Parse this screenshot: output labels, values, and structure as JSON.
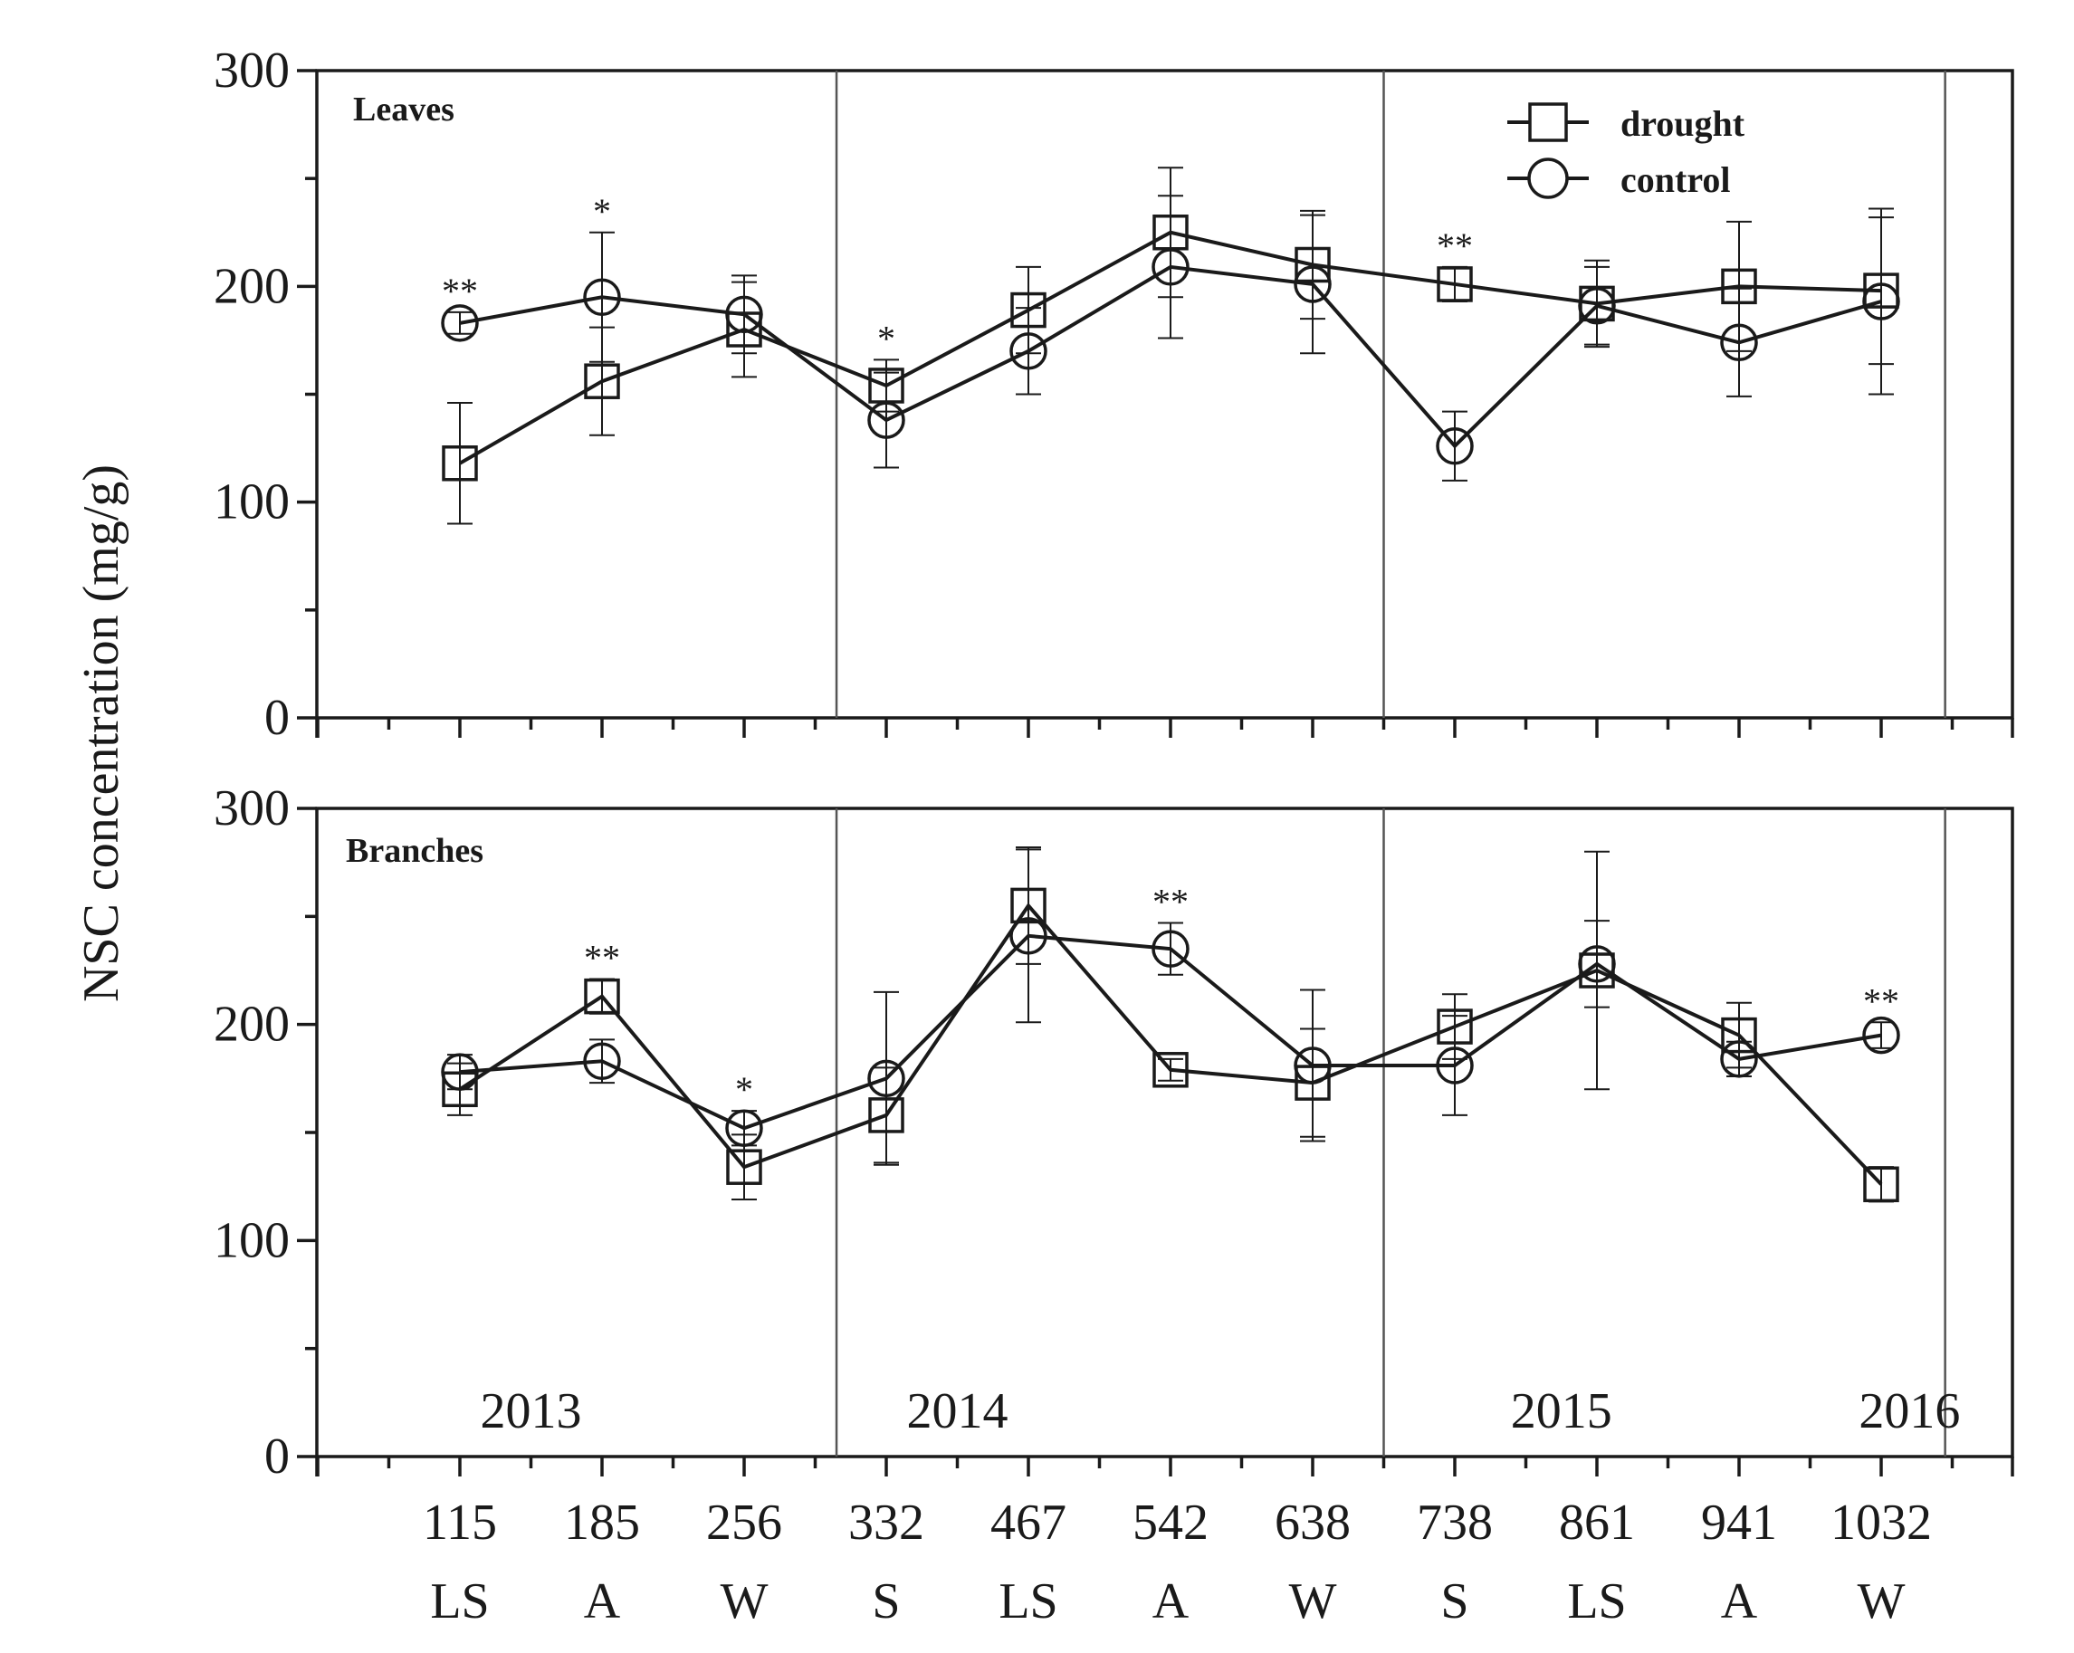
{
  "y_axis_label": "NSC concentration (mg/g)",
  "x_tick_labels": {
    "days": [
      "115",
      "185",
      "256",
      "332",
      "467",
      "542",
      "638",
      "738",
      "861",
      "941",
      "1032"
    ],
    "seasons": [
      "LS",
      "A",
      "W",
      "S",
      "LS",
      "A",
      "W",
      "S",
      "LS",
      "A",
      "W"
    ]
  },
  "year_separators_day_index": [
    2.65,
    6.5,
    10.45
  ],
  "year_labels": [
    {
      "label": "2013",
      "center_index": 0.5
    },
    {
      "label": "2014",
      "center_index": 3.5
    },
    {
      "label": "2015",
      "center_index": 7.75
    },
    {
      "label": "2016",
      "center_index": 10.2
    }
  ],
  "legend": {
    "position": "top-right",
    "drought": "drought",
    "control": "control"
  },
  "colors": {
    "ink": "#1a1a1a",
    "background": "#ffffff",
    "separator": "#555555"
  },
  "chart_data": [
    {
      "type": "line",
      "title": "Leaves",
      "ylabel": "NSC concentration (mg/g)",
      "ylim": [
        0,
        300
      ],
      "yticks": [
        0,
        100,
        200,
        300
      ],
      "x": [
        115,
        185,
        256,
        332,
        467,
        542,
        638,
        738,
        861,
        941,
        1032
      ],
      "series": [
        {
          "name": "drought",
          "marker": "square",
          "values": [
            118,
            156,
            180,
            154,
            189,
            225,
            210,
            201,
            192,
            200,
            198
          ],
          "errors": [
            28,
            25,
            22,
            12,
            20,
            30,
            25,
            8,
            20,
            30,
            34
          ]
        },
        {
          "name": "control",
          "marker": "circle",
          "values": [
            183,
            195,
            187,
            138,
            170,
            209,
            201,
            126,
            191,
            174,
            193
          ],
          "errors": [
            5,
            30,
            18,
            22,
            20,
            33,
            32,
            16,
            18,
            25,
            43
          ]
        }
      ],
      "significance": [
        {
          "index": 0,
          "label": "**"
        },
        {
          "index": 1,
          "label": "*"
        },
        {
          "index": 3,
          "label": "*"
        },
        {
          "index": 7,
          "label": "**"
        }
      ]
    },
    {
      "type": "line",
      "title": "Branches",
      "ylabel": "NSC concentration (mg/g)",
      "ylim": [
        0,
        300
      ],
      "yticks": [
        0,
        100,
        200,
        300
      ],
      "x": [
        115,
        185,
        256,
        332,
        467,
        542,
        638,
        738,
        861,
        941,
        1032
      ],
      "series": [
        {
          "name": "drought",
          "marker": "square",
          "values": [
            170,
            213,
            134,
            158,
            255,
            179,
            173,
            199,
            225,
            195,
            126
          ],
          "errors": [
            12,
            8,
            15,
            22,
            27,
            5,
            25,
            15,
            55,
            15,
            8
          ]
        },
        {
          "name": "control",
          "marker": "circle",
          "values": [
            178,
            183,
            152,
            175,
            241,
            235,
            181,
            181,
            228,
            184,
            195
          ],
          "errors": [
            8,
            10,
            8,
            40,
            40,
            12,
            35,
            23,
            20,
            8,
            6
          ]
        }
      ],
      "significance": [
        {
          "index": 1,
          "label": "**"
        },
        {
          "index": 2,
          "label": "*"
        },
        {
          "index": 5,
          "label": "**"
        },
        {
          "index": 10,
          "label": "**"
        }
      ]
    }
  ]
}
